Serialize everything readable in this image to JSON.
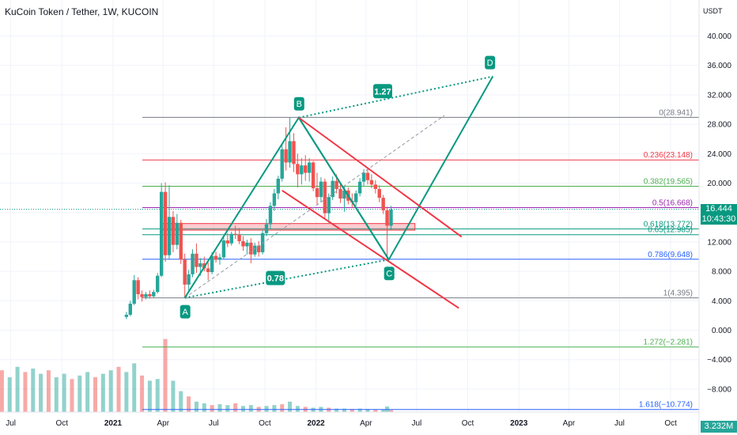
{
  "header": {
    "title": "KuCoin Token / Tether, 1W, KUCOIN"
  },
  "axis": {
    "currency": "USDT",
    "price_ticks": [
      "40.000",
      "36.000",
      "32.000",
      "28.000",
      "24.000",
      "20.000",
      "16.000",
      "12.000",
      "8.000",
      "4.000",
      "0.000",
      "−4.000",
      "−8.000"
    ],
    "time_ticks": [
      "Jul",
      "Oct",
      "2021",
      "Apr",
      "Jul",
      "Oct",
      "2022",
      "Apr",
      "Jul",
      "Oct",
      "2023",
      "Apr",
      "Jul",
      "Oct"
    ]
  },
  "last_price": {
    "value": "16.444",
    "countdown": "10:43:30"
  },
  "volume": {
    "label": "3.232M"
  },
  "colors": {
    "up": "#26a69a",
    "down": "#ef5350",
    "pattern": "#089981",
    "channel": "#f23645",
    "fib_blue": "#2962ff"
  },
  "chart_data": {
    "type": "candlestick",
    "title": "KuCoin Token / Tether, 1W, KUCOIN",
    "ylim": [
      -11,
      44
    ],
    "x_range": [
      "2020-06",
      "2023-12"
    ],
    "y_unit": "USDT",
    "fib_levels": [
      {
        "ratio": "0",
        "price": 28.941,
        "label": "0(28.941)",
        "color": "#787b86"
      },
      {
        "ratio": "0.236",
        "price": 23.148,
        "label": "0.236(23.148)",
        "color": "#f23645"
      },
      {
        "ratio": "0.382",
        "price": 19.565,
        "label": "0.382(19.565)",
        "color": "#4caf50"
      },
      {
        "ratio": "0.5",
        "price": 16.668,
        "label": "0.5(16.668)",
        "color": "#9c27b0"
      },
      {
        "ratio": "0.618",
        "price": 13.772,
        "label": "0.618(13.772)",
        "color": "#089981"
      },
      {
        "ratio": "0.65",
        "price": 12.985,
        "label": "0.65(12.985)",
        "color": "#089981"
      },
      {
        "ratio": "0.786",
        "price": 9.648,
        "label": "0.786(9.648)",
        "color": "#2962ff"
      },
      {
        "ratio": "1",
        "price": 4.395,
        "label": "1(4.395)",
        "color": "#787b86"
      },
      {
        "ratio": "1.272",
        "price": -2.281,
        "label": "1.272(−2.281)",
        "color": "#4caf50"
      },
      {
        "ratio": "1.618",
        "price": -10.774,
        "label": "1.618(−10.774)",
        "color": "#2962ff"
      }
    ],
    "harmonic_pattern": {
      "points": [
        {
          "label": "A",
          "date": "2021-05-10",
          "price": 4.4
        },
        {
          "label": "B",
          "date": "2021-12-01",
          "price": 28.9
        },
        {
          "label": "C",
          "date": "2022-05-12",
          "price": 9.6
        },
        {
          "label": "D",
          "date": "2022-11-15",
          "price": 34.5
        }
      ],
      "ratios": [
        {
          "label": "1.27",
          "date": "2022-05-01",
          "price": 32.5
        },
        {
          "label": "0.78",
          "date": "2021-10-20",
          "price": 7.1
        }
      ]
    },
    "channel": {
      "upper": [
        {
          "date": "2021-12-01",
          "price": 28.9
        },
        {
          "date": "2022-09-20",
          "price": 12.7
        }
      ],
      "lower": [
        {
          "date": "2021-11-01",
          "price": 19.0
        },
        {
          "date": "2022-09-15",
          "price": 3.0
        }
      ]
    },
    "resistance_zone": {
      "from": "2021-03-28",
      "to": "2022-06-28",
      "low": 13.6,
      "high": 14.5
    },
    "diagonal": [
      {
        "date": "2021-05-10",
        "price": 4.4
      },
      {
        "date": "2022-08-20",
        "price": 29.2
      }
    ],
    "candles": [
      {
        "date": "2021-01-25",
        "o": 1.8,
        "h": 2.5,
        "l": 1.5,
        "c": 2.1
      },
      {
        "date": "2021-02-01",
        "o": 2.1,
        "h": 4.0,
        "l": 1.9,
        "c": 3.6
      },
      {
        "date": "2021-02-08",
        "o": 3.6,
        "h": 7.5,
        "l": 3.4,
        "c": 6.8
      },
      {
        "date": "2021-02-15",
        "o": 6.8,
        "h": 7.2,
        "l": 4.2,
        "c": 4.9
      },
      {
        "date": "2021-02-22",
        "o": 4.9,
        "h": 5.4,
        "l": 3.9,
        "c": 4.5
      },
      {
        "date": "2021-03-01",
        "o": 4.5,
        "h": 5.2,
        "l": 4.2,
        "c": 4.9
      },
      {
        "date": "2021-03-08",
        "o": 4.9,
        "h": 5.4,
        "l": 4.3,
        "c": 4.6
      },
      {
        "date": "2021-03-15",
        "o": 4.6,
        "h": 5.5,
        "l": 4.4,
        "c": 5.2
      },
      {
        "date": "2021-03-22",
        "o": 5.2,
        "h": 7.8,
        "l": 5.0,
        "c": 7.4
      },
      {
        "date": "2021-03-29",
        "o": 7.4,
        "h": 20.0,
        "l": 7.2,
        "c": 18.8
      },
      {
        "date": "2021-04-05",
        "o": 18.8,
        "h": 20.1,
        "l": 9.3,
        "c": 10.2
      },
      {
        "date": "2021-04-12",
        "o": 10.2,
        "h": 19.7,
        "l": 9.6,
        "c": 15.4
      },
      {
        "date": "2021-04-19",
        "o": 15.4,
        "h": 16.2,
        "l": 10.6,
        "c": 11.6
      },
      {
        "date": "2021-04-26",
        "o": 11.6,
        "h": 15.8,
        "l": 11.0,
        "c": 14.6
      },
      {
        "date": "2021-05-03",
        "o": 14.6,
        "h": 15.0,
        "l": 9.0,
        "c": 9.6
      },
      {
        "date": "2021-05-10",
        "o": 9.6,
        "h": 10.4,
        "l": 4.4,
        "c": 6.2
      },
      {
        "date": "2021-05-17",
        "o": 6.2,
        "h": 8.2,
        "l": 5.4,
        "c": 7.6
      },
      {
        "date": "2021-05-24",
        "o": 7.6,
        "h": 11.0,
        "l": 7.2,
        "c": 10.4
      },
      {
        "date": "2021-05-31",
        "o": 10.4,
        "h": 11.8,
        "l": 7.8,
        "c": 8.6
      },
      {
        "date": "2021-06-07",
        "o": 8.6,
        "h": 9.8,
        "l": 7.4,
        "c": 9.1
      },
      {
        "date": "2021-06-14",
        "o": 9.1,
        "h": 10.0,
        "l": 8.0,
        "c": 8.4
      },
      {
        "date": "2021-06-21",
        "o": 8.4,
        "h": 9.2,
        "l": 6.8,
        "c": 7.9
      },
      {
        "date": "2021-06-28",
        "o": 7.9,
        "h": 10.6,
        "l": 7.6,
        "c": 10.1
      },
      {
        "date": "2021-07-05",
        "o": 10.1,
        "h": 10.7,
        "l": 9.2,
        "c": 9.6
      },
      {
        "date": "2021-07-12",
        "o": 9.6,
        "h": 10.4,
        "l": 8.9,
        "c": 9.9
      },
      {
        "date": "2021-07-19",
        "o": 9.9,
        "h": 12.6,
        "l": 9.7,
        "c": 12.2
      },
      {
        "date": "2021-07-26",
        "o": 12.2,
        "h": 13.2,
        "l": 11.3,
        "c": 11.8
      },
      {
        "date": "2021-08-02",
        "o": 11.8,
        "h": 13.4,
        "l": 11.5,
        "c": 13.1
      },
      {
        "date": "2021-08-09",
        "o": 13.1,
        "h": 14.2,
        "l": 12.4,
        "c": 13.0
      },
      {
        "date": "2021-08-16",
        "o": 13.0,
        "h": 13.9,
        "l": 11.7,
        "c": 12.1
      },
      {
        "date": "2021-08-23",
        "o": 12.1,
        "h": 12.8,
        "l": 10.8,
        "c": 11.4
      },
      {
        "date": "2021-08-30",
        "o": 11.4,
        "h": 12.3,
        "l": 10.3,
        "c": 11.9
      },
      {
        "date": "2021-09-06",
        "o": 11.9,
        "h": 12.5,
        "l": 9.1,
        "c": 10.3
      },
      {
        "date": "2021-09-13",
        "o": 10.3,
        "h": 11.9,
        "l": 10.0,
        "c": 11.5
      },
      {
        "date": "2021-09-20",
        "o": 11.5,
        "h": 12.1,
        "l": 10.0,
        "c": 10.6
      },
      {
        "date": "2021-09-27",
        "o": 10.6,
        "h": 13.6,
        "l": 10.3,
        "c": 13.2
      },
      {
        "date": "2021-10-04",
        "o": 13.2,
        "h": 15.1,
        "l": 12.8,
        "c": 14.4
      },
      {
        "date": "2021-10-11",
        "o": 14.4,
        "h": 17.4,
        "l": 13.8,
        "c": 16.9
      },
      {
        "date": "2021-10-18",
        "o": 16.9,
        "h": 19.2,
        "l": 16.2,
        "c": 18.6
      },
      {
        "date": "2021-10-25",
        "o": 18.6,
        "h": 21.0,
        "l": 17.8,
        "c": 20.6
      },
      {
        "date": "2021-11-01",
        "o": 20.6,
        "h": 25.2,
        "l": 20.2,
        "c": 24.6
      },
      {
        "date": "2021-11-08",
        "o": 24.6,
        "h": 27.6,
        "l": 21.7,
        "c": 22.8
      },
      {
        "date": "2021-11-15",
        "o": 22.8,
        "h": 28.9,
        "l": 22.1,
        "c": 25.7
      },
      {
        "date": "2021-11-22",
        "o": 25.7,
        "h": 26.8,
        "l": 21.5,
        "c": 22.6
      },
      {
        "date": "2021-11-29",
        "o": 22.6,
        "h": 24.0,
        "l": 19.4,
        "c": 21.2
      },
      {
        "date": "2021-12-06",
        "o": 21.2,
        "h": 23.4,
        "l": 19.8,
        "c": 22.4
      },
      {
        "date": "2021-12-13",
        "o": 22.4,
        "h": 23.8,
        "l": 20.3,
        "c": 21.4
      },
      {
        "date": "2021-12-20",
        "o": 21.4,
        "h": 23.4,
        "l": 20.2,
        "c": 22.8
      },
      {
        "date": "2021-12-27",
        "o": 22.8,
        "h": 23.0,
        "l": 18.9,
        "c": 19.3
      },
      {
        "date": "2022-01-03",
        "o": 19.3,
        "h": 21.4,
        "l": 17.1,
        "c": 18.1
      },
      {
        "date": "2022-01-10",
        "o": 18.1,
        "h": 20.8,
        "l": 17.4,
        "c": 20.2
      },
      {
        "date": "2022-01-17",
        "o": 20.2,
        "h": 20.6,
        "l": 15.2,
        "c": 15.9
      },
      {
        "date": "2022-01-24",
        "o": 15.9,
        "h": 18.6,
        "l": 14.6,
        "c": 18.1
      },
      {
        "date": "2022-01-31",
        "o": 18.1,
        "h": 20.9,
        "l": 17.7,
        "c": 20.3
      },
      {
        "date": "2022-02-07",
        "o": 20.3,
        "h": 21.2,
        "l": 18.6,
        "c": 19.2
      },
      {
        "date": "2022-02-14",
        "o": 19.2,
        "h": 20.0,
        "l": 17.3,
        "c": 17.9
      },
      {
        "date": "2022-02-21",
        "o": 17.9,
        "h": 19.6,
        "l": 16.1,
        "c": 19.0
      },
      {
        "date": "2022-02-28",
        "o": 19.0,
        "h": 19.4,
        "l": 17.1,
        "c": 17.6
      },
      {
        "date": "2022-03-07",
        "o": 17.6,
        "h": 18.6,
        "l": 16.6,
        "c": 17.4
      },
      {
        "date": "2022-03-14",
        "o": 17.4,
        "h": 19.0,
        "l": 16.9,
        "c": 18.6
      },
      {
        "date": "2022-03-21",
        "o": 18.6,
        "h": 20.7,
        "l": 18.2,
        "c": 20.2
      },
      {
        "date": "2022-03-28",
        "o": 20.2,
        "h": 21.9,
        "l": 19.6,
        "c": 21.4
      },
      {
        "date": "2022-04-04",
        "o": 21.4,
        "h": 22.0,
        "l": 19.8,
        "c": 20.4
      },
      {
        "date": "2022-04-11",
        "o": 20.4,
        "h": 21.2,
        "l": 19.3,
        "c": 19.8
      },
      {
        "date": "2022-04-18",
        "o": 19.8,
        "h": 20.4,
        "l": 18.6,
        "c": 19.2
      },
      {
        "date": "2022-04-25",
        "o": 19.2,
        "h": 19.7,
        "l": 17.4,
        "c": 18.0
      },
      {
        "date": "2022-05-02",
        "o": 18.0,
        "h": 18.4,
        "l": 15.8,
        "c": 16.3
      },
      {
        "date": "2022-05-09",
        "o": 16.3,
        "h": 16.8,
        "l": 9.6,
        "c": 14.2
      },
      {
        "date": "2022-05-16",
        "o": 14.2,
        "h": 16.9,
        "l": 13.6,
        "c": 16.4
      }
    ],
    "volume": [
      [
        "2020-06-01",
        2.1
      ],
      [
        "2020-06-15",
        2.4
      ],
      [
        "2020-06-29",
        2.0
      ],
      [
        "2020-07-13",
        2.6
      ],
      [
        "2020-07-27",
        2.3
      ],
      [
        "2020-08-10",
        2.5
      ],
      [
        "2020-08-24",
        2.2
      ],
      [
        "2020-09-07",
        2.4
      ],
      [
        "2020-09-21",
        2.0
      ],
      [
        "2020-10-05",
        2.2
      ],
      [
        "2020-10-19",
        1.9
      ],
      [
        "2020-11-02",
        2.1
      ],
      [
        "2020-11-16",
        2.3
      ],
      [
        "2020-11-30",
        2.0
      ],
      [
        "2020-12-14",
        2.2
      ],
      [
        "2020-12-28",
        2.4
      ],
      [
        "2021-01-11",
        2.6
      ],
      [
        "2021-01-25",
        2.3
      ],
      [
        "2021-02-08",
        2.8
      ],
      [
        "2021-02-22",
        2.1
      ],
      [
        "2021-03-08",
        1.8
      ],
      [
        "2021-03-22",
        1.9
      ],
      [
        "2021-04-05",
        4.2
      ],
      [
        "2021-04-19",
        1.8
      ],
      [
        "2021-05-03",
        1.2
      ],
      [
        "2021-05-17",
        0.9
      ],
      [
        "2021-05-31",
        0.6
      ],
      [
        "2021-06-14",
        0.5
      ],
      [
        "2021-06-28",
        0.4
      ],
      [
        "2021-07-12",
        0.45
      ],
      [
        "2021-07-26",
        0.4
      ],
      [
        "2021-08-09",
        0.5
      ],
      [
        "2021-08-23",
        0.35
      ],
      [
        "2021-09-06",
        0.4
      ],
      [
        "2021-09-20",
        0.3
      ],
      [
        "2021-10-04",
        0.35
      ],
      [
        "2021-10-18",
        0.4
      ],
      [
        "2021-11-01",
        0.45
      ],
      [
        "2021-11-15",
        0.6
      ],
      [
        "2021-11-29",
        0.35
      ],
      [
        "2021-12-13",
        0.3
      ],
      [
        "2021-12-27",
        0.25
      ],
      [
        "2022-01-10",
        0.3
      ],
      [
        "2022-01-24",
        0.25
      ],
      [
        "2022-02-07",
        0.2
      ],
      [
        "2022-02-21",
        0.2
      ],
      [
        "2022-03-07",
        0.18
      ],
      [
        "2022-03-21",
        0.2
      ],
      [
        "2022-04-04",
        0.18
      ],
      [
        "2022-04-18",
        0.16
      ],
      [
        "2022-05-02",
        0.15
      ],
      [
        "2022-05-09",
        0.32
      ],
      [
        "2022-05-16",
        0.12
      ]
    ]
  }
}
